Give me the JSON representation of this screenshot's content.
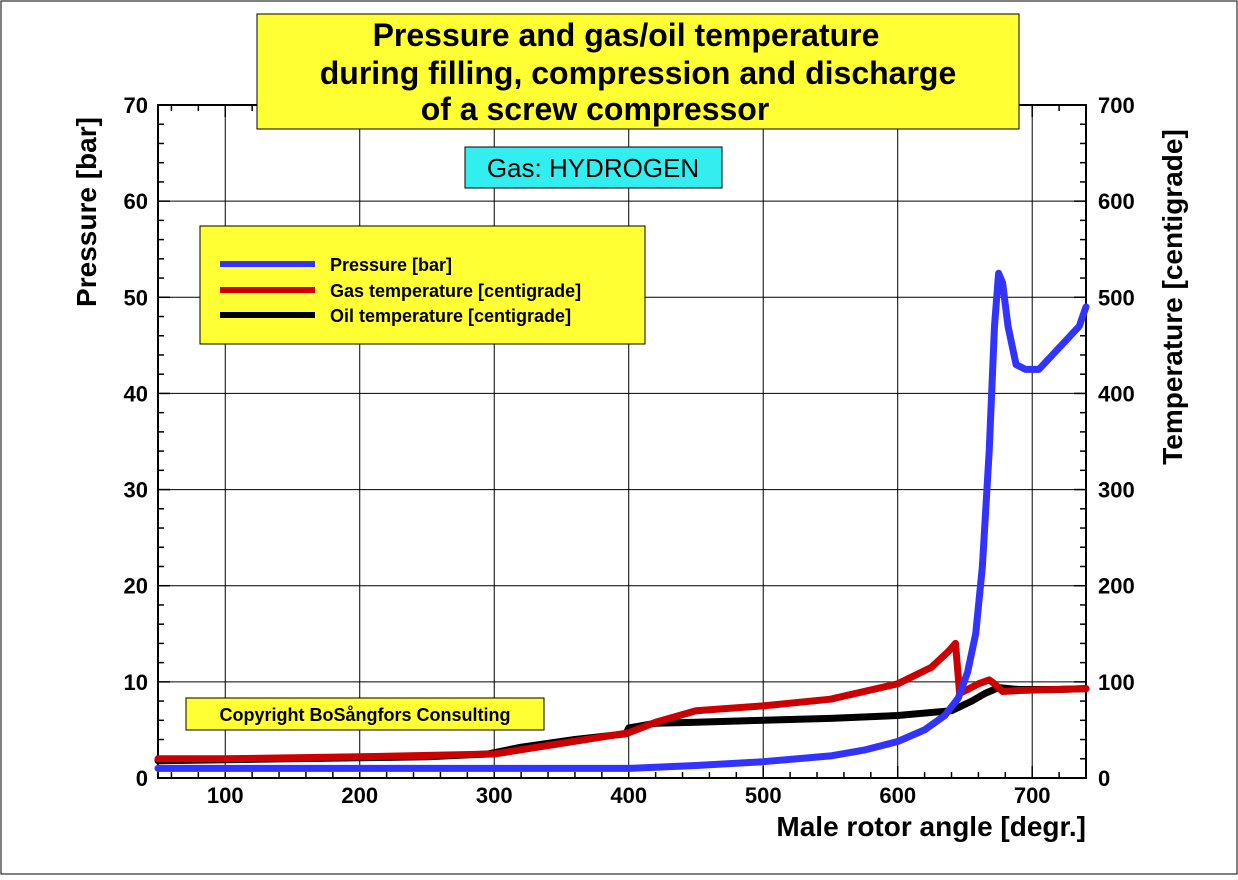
{
  "chart_data": {
    "type": "line",
    "title": [
      "Pressure and gas/oil temperature",
      "during filling, compression and discharge",
      "of a screw compressor"
    ],
    "subtitle": "Gas: HYDROGEN",
    "xlabel": "Male rotor angle [degr.]",
    "ylabel_left": "Pressure [bar]",
    "ylabel_right": "Temperature [centigrade]",
    "xlim": [
      50,
      740
    ],
    "ylim_left": [
      0,
      70
    ],
    "ylim_right": [
      0,
      700
    ],
    "x_ticks": [
      100,
      200,
      300,
      400,
      500,
      600,
      700
    ],
    "y_ticks_left": [
      0,
      10,
      20,
      30,
      40,
      50,
      60,
      70
    ],
    "y_ticks_right": [
      0,
      100,
      200,
      300,
      400,
      500,
      600,
      700
    ],
    "grid": true,
    "legend_position": "upper-left",
    "annotation": "Copyright BoSångfors Consulting",
    "colors": {
      "pressure": "#3333ff",
      "gas_temperature": "#cc0000",
      "oil_temperature": "#000000",
      "title_box": "#ffff33",
      "subtitle_box": "#33eeee",
      "legend_box": "#ffff33",
      "copyright_box": "#ffff33"
    },
    "series": [
      {
        "name": "Pressure [bar]",
        "axis": "left",
        "color": "#3333ff",
        "x": [
          50,
          100,
          200,
          300,
          400,
          450,
          500,
          550,
          575,
          600,
          620,
          635,
          645,
          652,
          658,
          663,
          668,
          672,
          675,
          678,
          682,
          688,
          695,
          705,
          715,
          725,
          735,
          740
        ],
        "y": [
          1.0,
          1.0,
          1.0,
          1.0,
          1.0,
          1.3,
          1.7,
          2.3,
          2.9,
          3.8,
          5.0,
          6.5,
          8.3,
          11.0,
          15.0,
          22.0,
          34.0,
          47.0,
          52.5,
          51.5,
          47.0,
          43.0,
          42.5,
          42.5,
          44.0,
          45.5,
          47.0,
          49.0
        ]
      },
      {
        "name": "Gas temperature [centigrade]",
        "axis": "right",
        "color": "#cc0000",
        "x": [
          50,
          100,
          200,
          300,
          400,
          420,
          450,
          500,
          550,
          600,
          625,
          638,
          643,
          646,
          652,
          660,
          668,
          672,
          678,
          690,
          740
        ],
        "y": [
          20,
          20,
          22,
          25,
          47,
          58,
          70,
          75,
          82,
          98,
          115,
          132,
          140,
          88,
          92,
          98,
          102,
          98,
          90,
          91,
          93
        ]
      },
      {
        "name": "Oil temperature [centigrade]",
        "axis": "right",
        "color": "#000000",
        "x": [
          50,
          100,
          200,
          250,
          295,
          320,
          360,
          398,
          400,
          420,
          450,
          500,
          550,
          600,
          640,
          655,
          665,
          675,
          690,
          720,
          740
        ],
        "y": [
          18,
          19,
          21,
          22,
          25,
          32,
          40,
          46,
          52,
          57,
          58,
          60,
          62,
          65,
          70,
          80,
          88,
          94,
          92,
          92,
          93
        ]
      }
    ]
  }
}
